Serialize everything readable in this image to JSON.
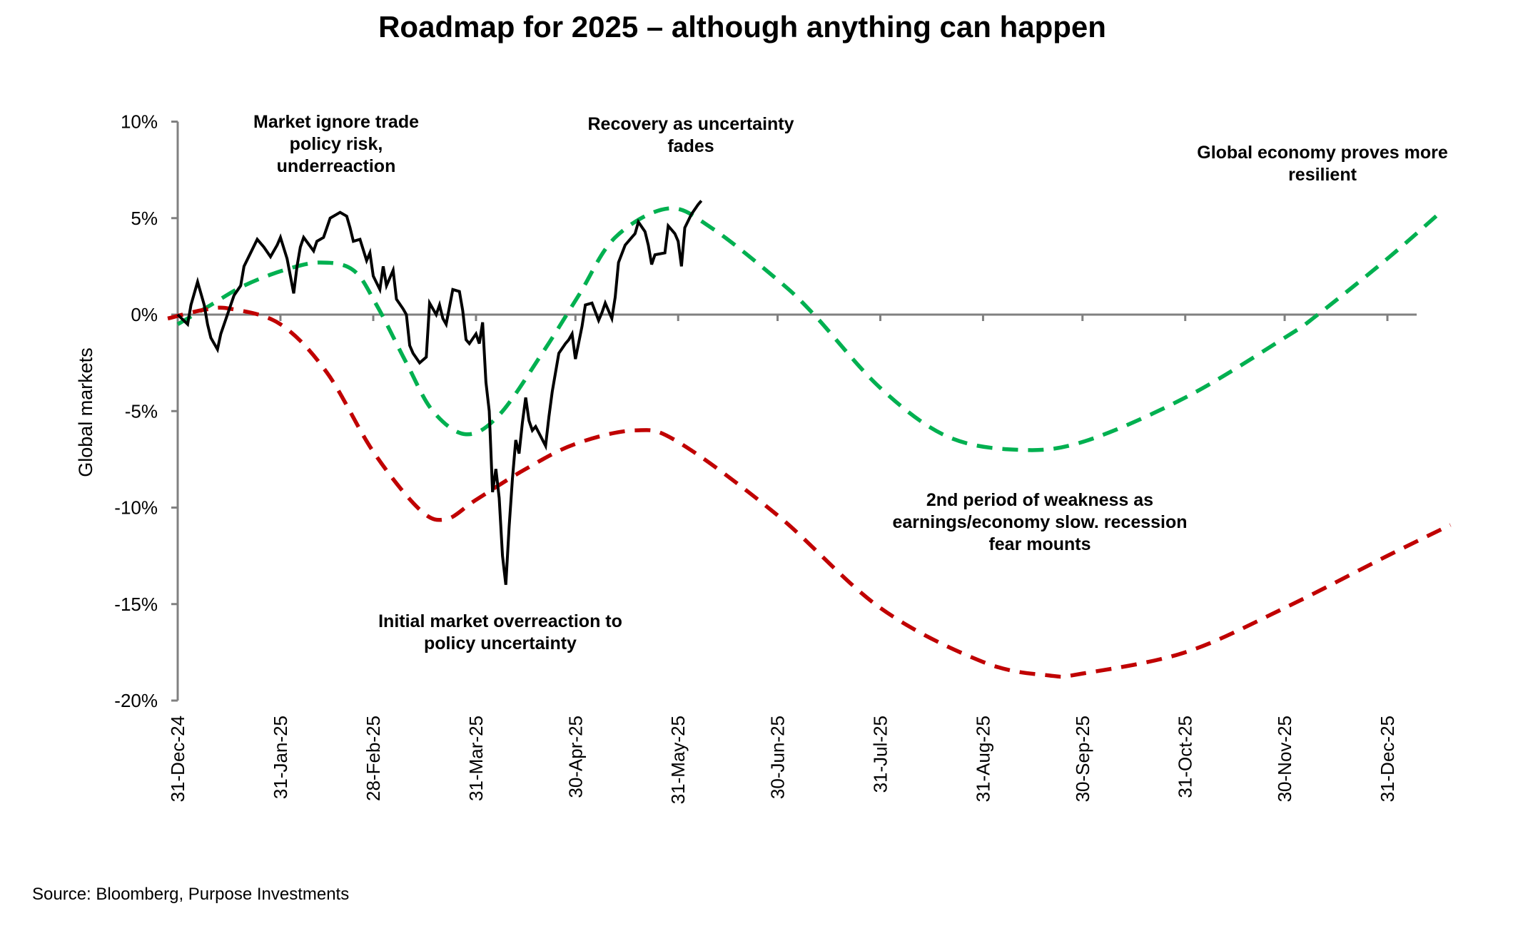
{
  "chart_data": {
    "type": "line",
    "title": "Roadmap for 2025 – although anything can happen",
    "ylabel": "Global markets",
    "xlabel": "",
    "ylim": [
      -20,
      10
    ],
    "xlim": [
      "2024-12-31",
      "2026-01-31"
    ],
    "y_ticks": [
      "10%",
      "5%",
      "0%",
      "-5%",
      "-10%",
      "-15%",
      "-20%"
    ],
    "y_tick_values": [
      10,
      5,
      0,
      -5,
      -10,
      -15,
      -20
    ],
    "x_ticks": [
      "31-Dec-24",
      "31-Jan-25",
      "28-Feb-25",
      "31-Mar-25",
      "30-Apr-25",
      "31-May-25",
      "30-Jun-25",
      "31-Jul-25",
      "31-Aug-25",
      "30-Sep-25",
      "31-Oct-25",
      "30-Nov-25",
      "31-Dec-25"
    ],
    "x_tick_dates": [
      "2024-12-31",
      "2025-01-31",
      "2025-02-28",
      "2025-03-31",
      "2025-04-30",
      "2025-05-31",
      "2025-06-30",
      "2025-07-31",
      "2025-08-31",
      "2025-09-30",
      "2025-10-31",
      "2025-11-30",
      "2025-12-31"
    ],
    "grid": false,
    "legend": "none",
    "colors": {
      "actual": "#000000",
      "bull": "#00b050",
      "bear": "#c00000",
      "axis": "#808080"
    },
    "series": [
      {
        "style": "solid",
        "color": "#000000",
        "points": [
          [
            "2024-12-31",
            0
          ],
          [
            "2025-01-03",
            -0.5
          ],
          [
            "2025-01-04",
            0.5
          ],
          [
            "2025-01-06",
            1.7
          ],
          [
            "2025-01-08",
            0.5
          ],
          [
            "2025-01-09",
            -0.5
          ],
          [
            "2025-01-10",
            -1.2
          ],
          [
            "2025-01-12",
            -1.8
          ],
          [
            "2025-01-13",
            -1.0
          ],
          [
            "2025-01-15",
            0
          ],
          [
            "2025-01-17",
            1.0
          ],
          [
            "2025-01-19",
            1.5
          ],
          [
            "2025-01-20",
            2.5
          ],
          [
            "2025-01-22",
            3.2
          ],
          [
            "2025-01-24",
            3.9
          ],
          [
            "2025-01-26",
            3.5
          ],
          [
            "2025-01-28",
            3.0
          ],
          [
            "2025-01-30",
            3.6
          ],
          [
            "2025-01-31",
            4.0
          ],
          [
            "2025-02-02",
            2.9
          ],
          [
            "2025-02-04",
            1.1
          ],
          [
            "2025-02-05",
            2.5
          ],
          [
            "2025-02-06",
            3.5
          ],
          [
            "2025-02-07",
            4.0
          ],
          [
            "2025-02-10",
            3.3
          ],
          [
            "2025-02-11",
            3.8
          ],
          [
            "2025-02-13",
            4.0
          ],
          [
            "2025-02-15",
            5.0
          ],
          [
            "2025-02-18",
            5.3
          ],
          [
            "2025-02-20",
            5.1
          ],
          [
            "2025-02-21",
            4.5
          ],
          [
            "2025-02-22",
            3.8
          ],
          [
            "2025-02-24",
            3.9
          ],
          [
            "2025-02-26",
            2.8
          ],
          [
            "2025-02-27",
            3.2
          ],
          [
            "2025-02-28",
            2.0
          ],
          [
            "2025-03-02",
            1.3
          ],
          [
            "2025-03-03",
            2.5
          ],
          [
            "2025-03-04",
            1.5
          ],
          [
            "2025-03-06",
            2.3
          ],
          [
            "2025-03-07",
            0.8
          ],
          [
            "2025-03-09",
            0.3
          ],
          [
            "2025-03-10",
            0
          ],
          [
            "2025-03-11",
            -1.6
          ],
          [
            "2025-03-12",
            -2.0
          ],
          [
            "2025-03-14",
            -2.5
          ],
          [
            "2025-03-16",
            -2.2
          ],
          [
            "2025-03-17",
            0.6
          ],
          [
            "2025-03-19",
            0
          ],
          [
            "2025-03-20",
            0.5
          ],
          [
            "2025-03-21",
            -0.2
          ],
          [
            "2025-03-22",
            -0.5
          ],
          [
            "2025-03-24",
            1.3
          ],
          [
            "2025-03-26",
            1.2
          ],
          [
            "2025-03-27",
            0.2
          ],
          [
            "2025-03-28",
            -1.3
          ],
          [
            "2025-03-29",
            -1.5
          ],
          [
            "2025-03-31",
            -1.0
          ],
          [
            "2025-04-01",
            -1.5
          ],
          [
            "2025-04-02",
            -0.4
          ],
          [
            "2025-04-03",
            -3.5
          ],
          [
            "2025-04-04",
            -5.0
          ],
          [
            "2025-04-05",
            -9.2
          ],
          [
            "2025-04-06",
            -8.0
          ],
          [
            "2025-04-07",
            -9.5
          ],
          [
            "2025-04-08",
            -12.5
          ],
          [
            "2025-04-09",
            -14.0
          ],
          [
            "2025-04-10",
            -11.0
          ],
          [
            "2025-04-11",
            -8.5
          ],
          [
            "2025-04-12",
            -6.5
          ],
          [
            "2025-04-13",
            -7.2
          ],
          [
            "2025-04-14",
            -5.6
          ],
          [
            "2025-04-15",
            -4.3
          ],
          [
            "2025-04-16",
            -5.5
          ],
          [
            "2025-04-17",
            -6.0
          ],
          [
            "2025-04-18",
            -5.8
          ],
          [
            "2025-04-21",
            -6.8
          ],
          [
            "2025-04-22",
            -5.3
          ],
          [
            "2025-04-23",
            -4.0
          ],
          [
            "2025-04-24",
            -3.0
          ],
          [
            "2025-04-25",
            -2.0
          ],
          [
            "2025-04-27",
            -1.5
          ],
          [
            "2025-04-28",
            -1.3
          ],
          [
            "2025-04-29",
            -1.0
          ],
          [
            "2025-04-30",
            -2.3
          ],
          [
            "2025-05-02",
            -0.6
          ],
          [
            "2025-05-03",
            0.5
          ],
          [
            "2025-05-05",
            0.6
          ],
          [
            "2025-05-07",
            -0.3
          ],
          [
            "2025-05-08",
            0.1
          ],
          [
            "2025-05-09",
            0.6
          ],
          [
            "2025-05-11",
            -0.2
          ],
          [
            "2025-05-12",
            0.9
          ],
          [
            "2025-05-13",
            2.7
          ],
          [
            "2025-05-15",
            3.6
          ],
          [
            "2025-05-16",
            3.8
          ],
          [
            "2025-05-18",
            4.2
          ],
          [
            "2025-05-19",
            4.8
          ],
          [
            "2025-05-21",
            4.3
          ],
          [
            "2025-05-22",
            3.6
          ],
          [
            "2025-05-23",
            2.6
          ],
          [
            "2025-05-24",
            3.1
          ],
          [
            "2025-05-27",
            3.2
          ],
          [
            "2025-05-28",
            4.6
          ],
          [
            "2025-05-30",
            4.2
          ],
          [
            "2025-05-31",
            3.8
          ],
          [
            "2025-06-01",
            2.5
          ],
          [
            "2025-06-02",
            4.5
          ],
          [
            "2025-06-04",
            5.2
          ],
          [
            "2025-06-06",
            5.7
          ],
          [
            "2025-06-07",
            5.9
          ]
        ]
      },
      {
        "style": "dashed",
        "color": "#00b050",
        "points": [
          [
            "2024-12-31",
            -0.5
          ],
          [
            "2025-01-10",
            0.5
          ],
          [
            "2025-01-20",
            1.5
          ],
          [
            "2025-02-01",
            2.3
          ],
          [
            "2025-02-12",
            2.7
          ],
          [
            "2025-02-22",
            2.3
          ],
          [
            "2025-03-01",
            0.5
          ],
          [
            "2025-03-10",
            -2.5
          ],
          [
            "2025-03-18",
            -5.0
          ],
          [
            "2025-03-28",
            -6.2
          ],
          [
            "2025-04-07",
            -5.2
          ],
          [
            "2025-04-20",
            -2.0
          ],
          [
            "2025-05-01",
            1.0
          ],
          [
            "2025-05-12",
            4.0
          ],
          [
            "2025-05-28",
            5.5
          ],
          [
            "2025-06-10",
            4.5
          ],
          [
            "2025-06-30",
            1.8
          ],
          [
            "2025-07-11",
            0
          ],
          [
            "2025-07-31",
            -3.8
          ],
          [
            "2025-08-20",
            -6.3
          ],
          [
            "2025-09-10",
            -7.0
          ],
          [
            "2025-09-30",
            -6.6
          ],
          [
            "2025-10-31",
            -4.3
          ],
          [
            "2025-11-30",
            -1.2
          ],
          [
            "2025-12-10",
            0
          ],
          [
            "2025-12-31",
            2.9
          ],
          [
            "2026-01-16",
            5.3
          ]
        ]
      },
      {
        "style": "dashed",
        "color": "#c00000",
        "points": [
          [
            "2024-12-28",
            -0.2
          ],
          [
            "2025-01-08",
            0.25
          ],
          [
            "2025-01-16",
            0.3
          ],
          [
            "2025-01-31",
            -0.5
          ],
          [
            "2025-02-14",
            -3.0
          ],
          [
            "2025-02-28",
            -7.1
          ],
          [
            "2025-03-14",
            -10.1
          ],
          [
            "2025-03-22",
            -10.6
          ],
          [
            "2025-03-31",
            -9.6
          ],
          [
            "2025-04-15",
            -8.0
          ],
          [
            "2025-04-30",
            -6.7
          ],
          [
            "2025-05-18",
            -6.0
          ],
          [
            "2025-05-31",
            -6.6
          ],
          [
            "2025-06-30",
            -10.4
          ],
          [
            "2025-07-31",
            -15.2
          ],
          [
            "2025-08-31",
            -18.0
          ],
          [
            "2025-09-20",
            -18.7
          ],
          [
            "2025-09-30",
            -18.6
          ],
          [
            "2025-10-31",
            -17.5
          ],
          [
            "2025-11-30",
            -15.2
          ],
          [
            "2025-12-31",
            -12.5
          ],
          [
            "2026-01-19",
            -10.9
          ]
        ]
      }
    ],
    "annotations": [
      {
        "lines": [
          "Market ignore trade",
          "policy risk,",
          "underreaction"
        ]
      },
      {
        "lines": [
          "Recovery as uncertainty",
          "fades"
        ]
      },
      {
        "lines": [
          "Global economy proves more",
          "resilient"
        ]
      },
      {
        "lines": [
          "2nd period of weakness as",
          "earnings/economy slow. recession",
          "fear mounts"
        ]
      },
      {
        "lines": [
          "Initial market overreaction to",
          "policy uncertainty"
        ]
      }
    ]
  },
  "source": "Source: Bloomberg, Purpose Investments"
}
